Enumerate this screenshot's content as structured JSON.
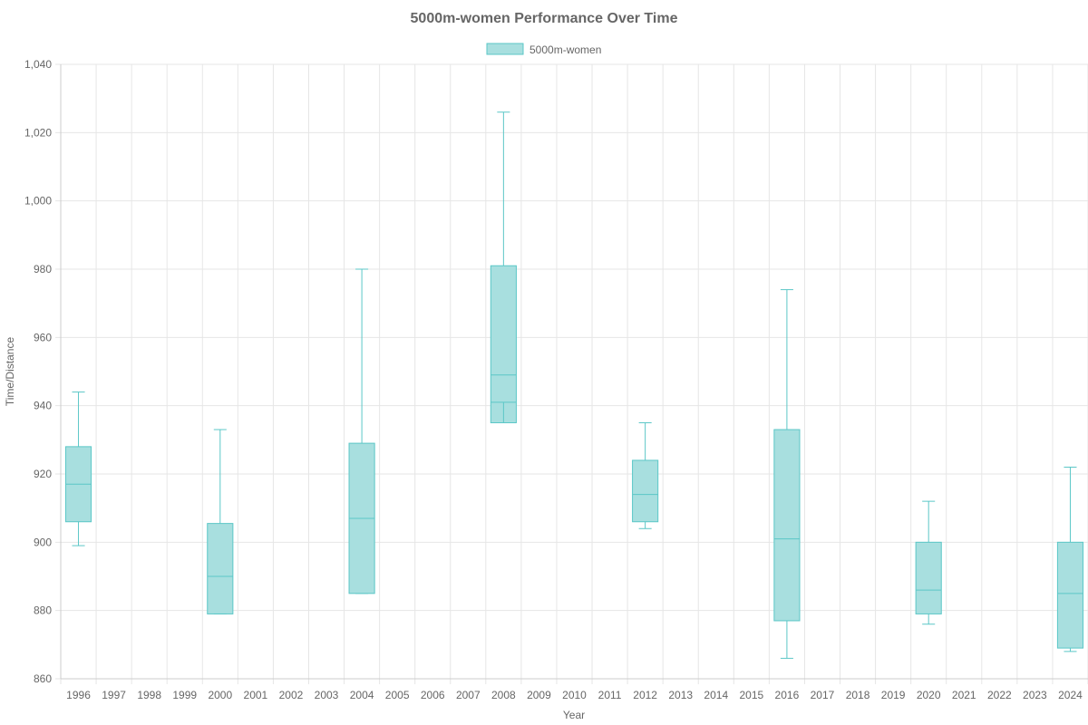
{
  "chart_data": {
    "type": "boxplot",
    "title": "5000m-women Performance Over Time",
    "xlabel": "Year",
    "ylabel": "Time/Distance",
    "ylim": [
      860,
      1040
    ],
    "y_ticks": [
      "860",
      "880",
      "900",
      "920",
      "940",
      "960",
      "980",
      "1,000",
      "1,020",
      "1,040"
    ],
    "y_tick_values": [
      860,
      880,
      900,
      920,
      940,
      960,
      980,
      1000,
      1020,
      1040
    ],
    "categories": [
      "1996",
      "1997",
      "1998",
      "1999",
      "2000",
      "2001",
      "2002",
      "2003",
      "2004",
      "2005",
      "2006",
      "2007",
      "2008",
      "2009",
      "2010",
      "2011",
      "2012",
      "2013",
      "2014",
      "2015",
      "2016",
      "2017",
      "2018",
      "2019",
      "2020",
      "2021",
      "2022",
      "2023",
      "2024"
    ],
    "grid": true,
    "legend_position": "top-center",
    "colors": {
      "fill": "#A8DFDF",
      "stroke": "#5BC7C7",
      "grid": "#E6E6E6",
      "axis": "#CCCCCC"
    },
    "series": [
      {
        "name": "5000m-women",
        "boxes": [
          {
            "category": "1996",
            "min": 899,
            "q1": 906,
            "median": 917,
            "q3": 928,
            "max": 944
          },
          {
            "category": "2000",
            "min": 879,
            "q1": 879,
            "median": 890,
            "q3": 905.5,
            "max": 933
          },
          {
            "category": "2004",
            "min": 885,
            "q1": 885,
            "median": 907,
            "q3": 929,
            "max": 980
          },
          {
            "category": "2008",
            "min": 935,
            "q1": 935,
            "median": 949,
            "q3": 981,
            "max": 1026,
            "inner": 941
          },
          {
            "category": "2012",
            "min": 904,
            "q1": 906,
            "median": 914,
            "q3": 924,
            "max": 935
          },
          {
            "category": "2016",
            "min": 866,
            "q1": 877,
            "median": 901,
            "q3": 933,
            "max": 974
          },
          {
            "category": "2020",
            "min": 876,
            "q1": 879,
            "median": 886,
            "q3": 900,
            "max": 912
          },
          {
            "category": "2024",
            "min": 868,
            "q1": 869,
            "median": 885,
            "q3": 900,
            "max": 922
          }
        ]
      }
    ]
  }
}
